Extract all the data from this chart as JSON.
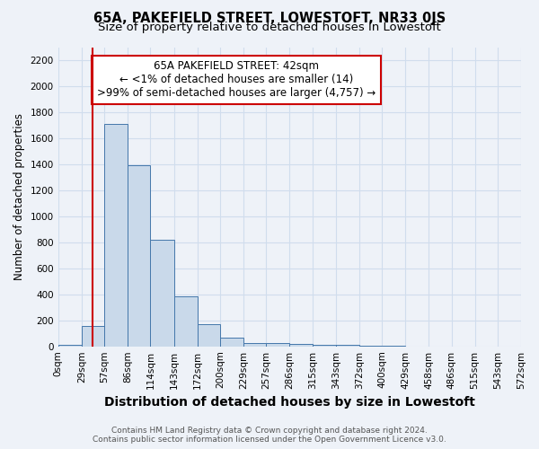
{
  "title": "65A, PAKEFIELD STREET, LOWESTOFT, NR33 0JS",
  "subtitle": "Size of property relative to detached houses in Lowestoft",
  "xlabel": "Distribution of detached houses by size in Lowestoft",
  "ylabel": "Number of detached properties",
  "footnote1": "Contains HM Land Registry data © Crown copyright and database right 2024.",
  "footnote2": "Contains public sector information licensed under the Open Government Licence v3.0.",
  "bin_edges": [
    0,
    29,
    57,
    86,
    114,
    143,
    172,
    200,
    229,
    257,
    286,
    315,
    343,
    372,
    400,
    429,
    458,
    486,
    515,
    543,
    572
  ],
  "bar_heights": [
    14,
    160,
    1710,
    1390,
    820,
    385,
    168,
    65,
    28,
    22,
    18,
    13,
    13,
    4,
    2,
    1,
    1,
    0,
    0,
    0
  ],
  "bar_facecolor": "#c9d9ea",
  "bar_edgecolor": "#4477aa",
  "grid_color": "#d0dded",
  "bg_color": "#eef2f8",
  "ylim": [
    0,
    2300
  ],
  "yticks": [
    0,
    200,
    400,
    600,
    800,
    1000,
    1200,
    1400,
    1600,
    1800,
    2000,
    2200
  ],
  "red_line_x": 42,
  "red_line_color": "#cc0000",
  "annotation_line1": "65A PAKEFIELD STREET: 42sqm",
  "annotation_line2": "← <1% of detached houses are smaller (14)",
  "annotation_line3": ">99% of semi-detached houses are larger (4,757) →",
  "annotation_box_color": "#cc0000",
  "title_fontsize": 10.5,
  "subtitle_fontsize": 9.5,
  "xlabel_fontsize": 10,
  "ylabel_fontsize": 8.5,
  "tick_fontsize": 7.5,
  "annotation_fontsize": 8.5,
  "footnote_fontsize": 6.5
}
